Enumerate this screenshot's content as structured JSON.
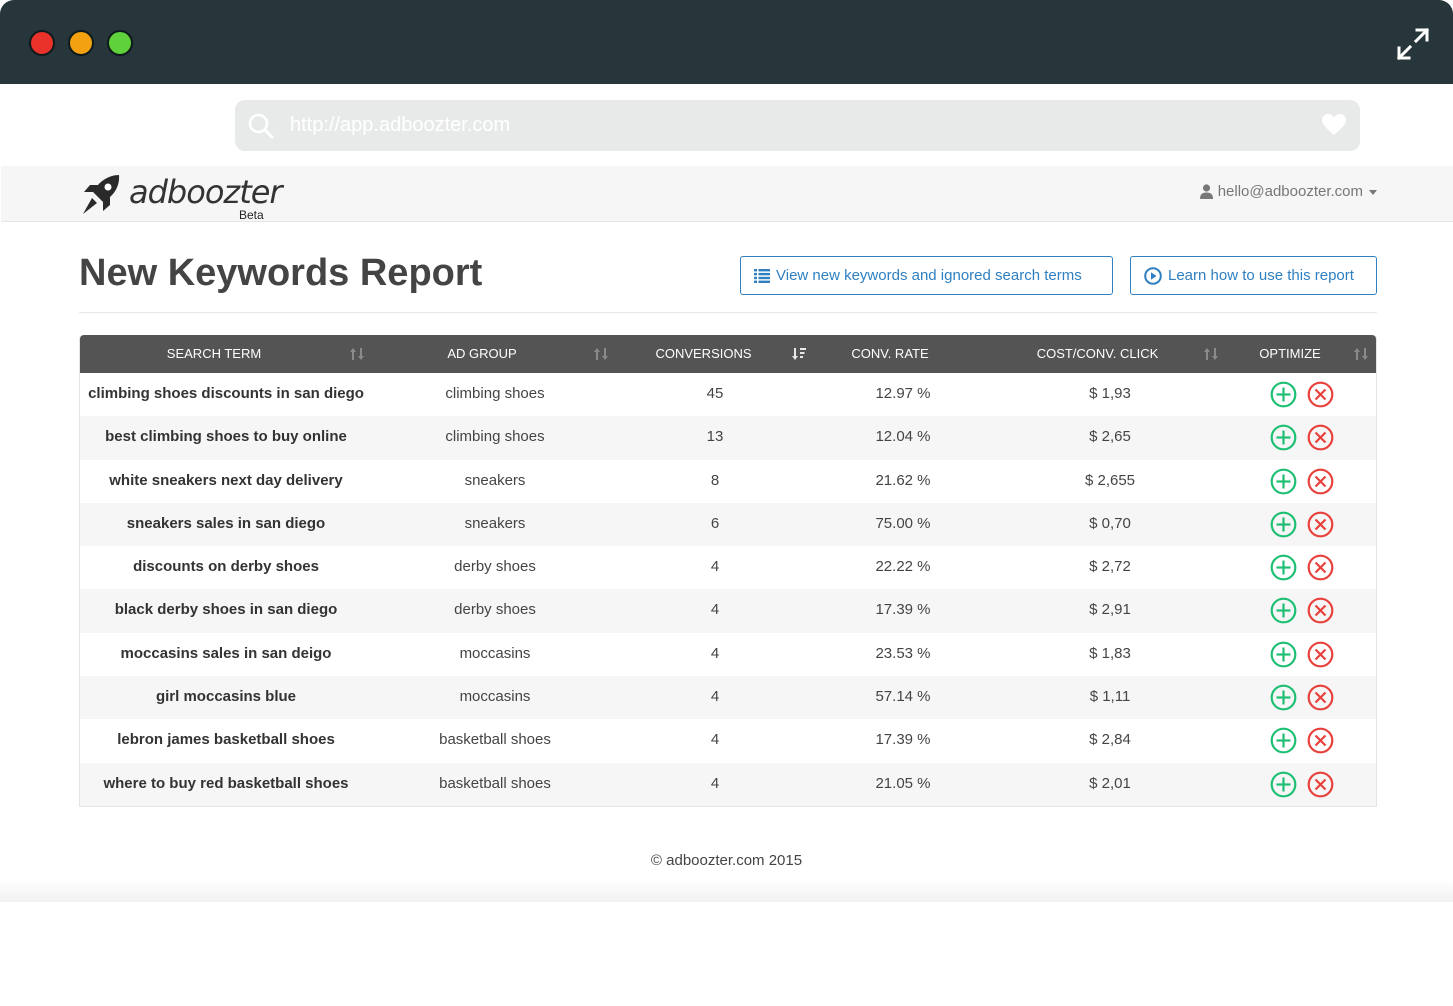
{
  "window": {
    "url_placeholder": "http://app.adboozter.com"
  },
  "header": {
    "logo_text": "adboozter",
    "beta_label": "Beta",
    "user_email": "hello@adboozter.com"
  },
  "page": {
    "title": "New Keywords Report",
    "view_button": "View new keywords and ignored search terms",
    "learn_button": "Learn how to use this report"
  },
  "table": {
    "columns": [
      "SEARCH TERM",
      "AD GROUP",
      "CONVERSIONS",
      "CONV. RATE",
      "COST/CONV. CLICK",
      "OPTIMIZE"
    ],
    "rows": [
      {
        "term": "climbing shoes discounts in san diego",
        "group": "climbing shoes",
        "conversions": "45",
        "rate": "12.97 %",
        "cost": "$ 1,93"
      },
      {
        "term": "best climbing shoes to buy online",
        "group": "climbing shoes",
        "conversions": "13",
        "rate": "12.04 %",
        "cost": "$ 2,65"
      },
      {
        "term": "white sneakers next day delivery",
        "group": "sneakers",
        "conversions": "8",
        "rate": "21.62 %",
        "cost": "$ 2,655"
      },
      {
        "term": "sneakers sales in san diego",
        "group": "sneakers",
        "conversions": "6",
        "rate": "75.00 %",
        "cost": "$ 0,70"
      },
      {
        "term": "discounts on derby shoes",
        "group": "derby shoes",
        "conversions": "4",
        "rate": "22.22 %",
        "cost": "$ 2,72"
      },
      {
        "term": "black derby shoes in san diego",
        "group": "derby shoes",
        "conversions": "4",
        "rate": "17.39 %",
        "cost": "$ 2,91"
      },
      {
        "term": "moccasins sales in san deigo",
        "group": "moccasins",
        "conversions": "4",
        "rate": "23.53 %",
        "cost": "$ 1,83"
      },
      {
        "term": "girl moccasins blue",
        "group": "moccasins",
        "conversions": "4",
        "rate": "57.14 %",
        "cost": "$ 1,11"
      },
      {
        "term": "lebron james basketball shoes",
        "group": "basketball shoes",
        "conversions": "4",
        "rate": "17.39 %",
        "cost": "$ 2,84"
      },
      {
        "term": "where to buy red basketball shoes",
        "group": "basketball shoes",
        "conversions": "4",
        "rate": "21.05 %",
        "cost": "$ 2,01"
      }
    ]
  },
  "footer": {
    "copyright": "© adboozter.com 2015"
  },
  "icons": {
    "add": "plus-circle-icon",
    "ignore": "x-circle-icon",
    "sort": "sort-arrows-icon"
  },
  "colors": {
    "accent_blue": "#2f7fc1",
    "add_green": "#1dbf73",
    "ignore_red": "#e8413c",
    "titlebar": "#26363a",
    "table_header": "#545454"
  }
}
